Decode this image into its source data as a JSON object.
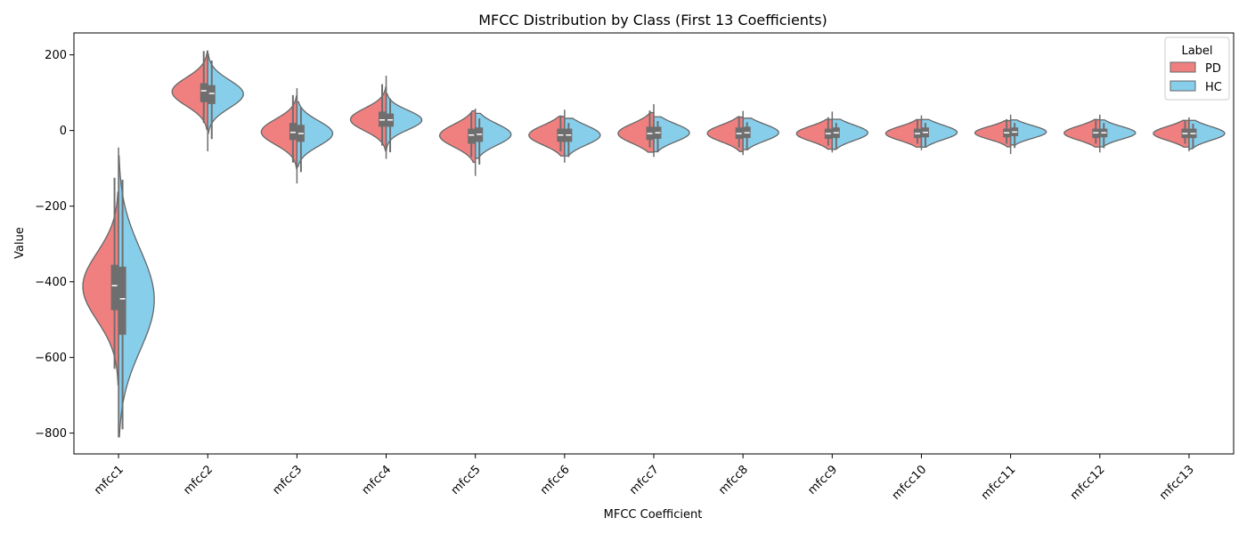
{
  "chart_data": {
    "type": "violin",
    "title": "MFCC Distribution by Class (First 13 Coefficients)",
    "xlabel": "MFCC Coefficient",
    "ylabel": "Value",
    "ylim": [
      -855,
      258
    ],
    "yticks": [
      200,
      0,
      -200,
      -400,
      -600,
      -800
    ],
    "ytick_labels": [
      "200",
      "0",
      "−200",
      "−400",
      "−600",
      "−800"
    ],
    "categories": [
      "mfcc1",
      "mfcc2",
      "mfcc3",
      "mfcc4",
      "mfcc5",
      "mfcc6",
      "mfcc7",
      "mfcc8",
      "mfcc9",
      "mfcc10",
      "mfcc11",
      "mfcc12",
      "mfcc13"
    ],
    "legend": {
      "title": "Label",
      "position": "top-right",
      "entries": [
        "PD",
        "HC"
      ]
    },
    "series": [
      {
        "name": "PD",
        "side": "left",
        "color": "#f08080",
        "stats": [
          {
            "min": -630,
            "q1": -475,
            "median": -410,
            "q3": -355,
            "max": -205
          },
          {
            "min": 20,
            "q1": 75,
            "median": 105,
            "q3": 125,
            "max": 210
          },
          {
            "min": -85,
            "q1": -25,
            "median": -5,
            "q3": 20,
            "max": 75
          },
          {
            "min": -40,
            "q1": 10,
            "median": 28,
            "q3": 50,
            "max": 100
          },
          {
            "min": -70,
            "q1": -35,
            "median": -12,
            "q3": 5,
            "max": 38
          },
          {
            "min": -55,
            "q1": -30,
            "median": -12,
            "q3": 5,
            "max": 25
          },
          {
            "min": -45,
            "q1": -25,
            "median": -8,
            "q3": 10,
            "max": 35
          },
          {
            "min": -45,
            "q1": -22,
            "median": -8,
            "q3": 8,
            "max": 25
          },
          {
            "min": -40,
            "q1": -22,
            "median": -8,
            "q3": 5,
            "max": 20
          },
          {
            "min": -35,
            "q1": -20,
            "median": -8,
            "q3": 5,
            "max": 20
          },
          {
            "min": -35,
            "q1": -18,
            "median": -6,
            "q3": 5,
            "max": 18
          },
          {
            "min": -35,
            "q1": -20,
            "median": -6,
            "q3": 5,
            "max": 20
          },
          {
            "min": -35,
            "q1": -20,
            "median": -8,
            "q3": 5,
            "max": 18
          }
        ]
      },
      {
        "name": "HC",
        "side": "right",
        "color": "#87ceeb",
        "stats": [
          {
            "min": -770,
            "q1": -540,
            "median": -445,
            "q3": -360,
            "max": -130
          },
          {
            "min": 10,
            "q1": 70,
            "median": 98,
            "q3": 120,
            "max": 185
          },
          {
            "min": -80,
            "q1": -30,
            "median": -8,
            "q3": 15,
            "max": 60
          },
          {
            "min": -40,
            "q1": 10,
            "median": 28,
            "q3": 45,
            "max": 85
          },
          {
            "min": -60,
            "q1": -30,
            "median": -10,
            "q3": 8,
            "max": 32
          },
          {
            "min": -55,
            "q1": -30,
            "median": -12,
            "q3": 5,
            "max": 20
          },
          {
            "min": -45,
            "q1": -22,
            "median": -6,
            "q3": 10,
            "max": 25
          },
          {
            "min": -40,
            "q1": -20,
            "median": -6,
            "q3": 10,
            "max": 22
          },
          {
            "min": -40,
            "q1": -20,
            "median": -6,
            "q3": 8,
            "max": 20
          },
          {
            "min": -35,
            "q1": -18,
            "median": -5,
            "q3": 8,
            "max": 20
          },
          {
            "min": -30,
            "q1": -15,
            "median": -4,
            "q3": 8,
            "max": 20
          },
          {
            "min": -35,
            "q1": -18,
            "median": -6,
            "q3": 5,
            "max": 20
          },
          {
            "min": -40,
            "q1": -20,
            "median": -8,
            "q3": 5,
            "max": 18
          }
        ]
      }
    ],
    "extremes": [
      {
        "min": -810,
        "max": -45
      },
      {
        "min": -55,
        "max": 210
      },
      {
        "min": -140,
        "max": 112
      },
      {
        "min": -75,
        "max": 145
      },
      {
        "min": -120,
        "max": 58
      },
      {
        "min": -85,
        "max": 55
      },
      {
        "min": -70,
        "max": 70
      },
      {
        "min": -65,
        "max": 52
      },
      {
        "min": -58,
        "max": 50
      },
      {
        "min": -52,
        "max": 40
      },
      {
        "min": -62,
        "max": 42
      },
      {
        "min": -58,
        "max": 42
      },
      {
        "min": -55,
        "max": 35
      }
    ],
    "box_color": "#6e6e6e",
    "outline_color": "#666666",
    "median_color": "#ffffff"
  }
}
